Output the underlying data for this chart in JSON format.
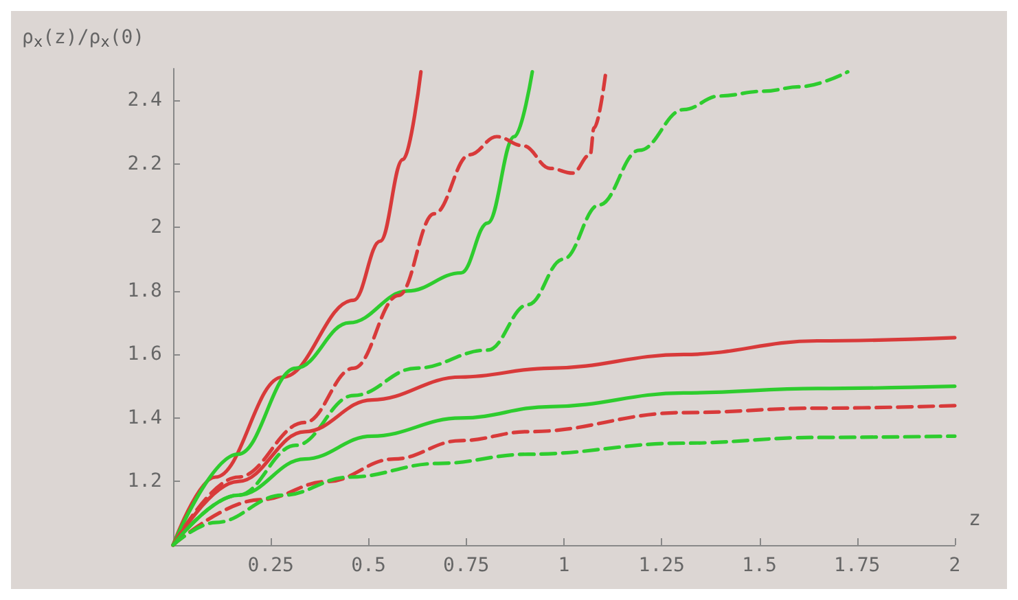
{
  "chart_data": {
    "type": "line",
    "xlabel": "z",
    "ylabel": "ρ$_{x}$(z)/ρ$_{x}$(0)",
    "xlim": [
      0,
      2
    ],
    "xticks": [
      0.25,
      0.5,
      0.75,
      1,
      1.25,
      1.5,
      1.75,
      2
    ],
    "ylim": [
      1,
      2.5
    ],
    "yticks": [
      1.2,
      1.4,
      1.6,
      1.8,
      2,
      2.2,
      2.4
    ],
    "grid": false,
    "marker": "none",
    "series": [
      {
        "color": "#d83a3a",
        "line_style": "solid",
        "x": [
          0,
          0.108,
          0.28,
          0.462,
          0.53,
          0.588,
          0.634
        ],
        "values": [
          1,
          1.214,
          1.529,
          1.771,
          1.957,
          2.214,
          2.49
        ]
      },
      {
        "color": "#2ecc2e",
        "line_style": "solid",
        "x": [
          0,
          0.166,
          0.314,
          0.451,
          0.6,
          0.737,
          0.805,
          0.873,
          0.919
        ],
        "values": [
          1,
          1.286,
          1.557,
          1.7,
          1.8,
          1.857,
          2.014,
          2.286,
          2.49
        ]
      },
      {
        "color": "#d83a3a",
        "line_style": "dashed",
        "x": [
          0,
          0.166,
          0.337,
          0.462,
          0.577,
          0.668,
          0.759,
          0.828,
          0.896,
          0.965,
          1.022,
          1.067,
          1.077,
          1.106
        ],
        "values": [
          1,
          1.214,
          1.386,
          1.557,
          1.786,
          2.043,
          2.229,
          2.286,
          2.257,
          2.186,
          2.171,
          2.229,
          2.314,
          2.479
        ]
      },
      {
        "color": "#2ecc2e",
        "line_style": "dashed",
        "x": [
          0,
          0.166,
          0.314,
          0.462,
          0.622,
          0.805,
          0.908,
          0.998,
          1.09,
          1.193,
          1.306,
          1.398,
          1.511,
          1.603,
          1.726
        ],
        "values": [
          1,
          1.157,
          1.314,
          1.471,
          1.557,
          1.614,
          1.757,
          1.9,
          2.071,
          2.243,
          2.371,
          2.414,
          2.429,
          2.443,
          2.49
        ]
      },
      {
        "color": "#d83a3a",
        "line_style": "solid",
        "x": [
          0,
          0.166,
          0.337,
          0.508,
          0.736,
          0.964,
          1.306,
          1.648,
          2
        ],
        "values": [
          1,
          1.2,
          1.357,
          1.457,
          1.529,
          1.557,
          1.6,
          1.643,
          1.653
        ]
      },
      {
        "color": "#2ecc2e",
        "line_style": "solid",
        "x": [
          0,
          0.166,
          0.337,
          0.508,
          0.736,
          0.965,
          1.306,
          1.648,
          2
        ],
        "values": [
          1,
          1.157,
          1.271,
          1.343,
          1.4,
          1.436,
          1.479,
          1.493,
          1.5
        ]
      },
      {
        "color": "#d83a3a",
        "line_style": "dashed",
        "x": [
          0,
          0.223,
          0.394,
          0.565,
          0.736,
          0.908,
          1.306,
          1.648,
          2
        ],
        "values": [
          1,
          1.143,
          1.2,
          1.271,
          1.329,
          1.357,
          1.417,
          1.431,
          1.439
        ]
      },
      {
        "color": "#2ecc2e",
        "line_style": "dashed",
        "x": [
          0,
          0.108,
          0.28,
          0.451,
          0.679,
          0.908,
          1.306,
          1.648,
          2
        ],
        "values": [
          1,
          1.071,
          1.157,
          1.214,
          1.257,
          1.286,
          1.321,
          1.339,
          1.343
        ]
      }
    ]
  }
}
